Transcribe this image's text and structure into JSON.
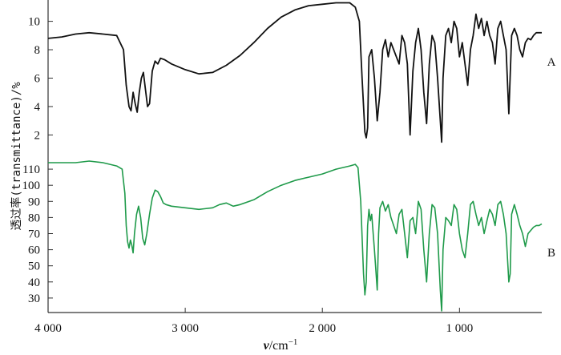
{
  "chart_data": {
    "type": "line",
    "title": "",
    "ylabel": "透过率(transmittance)/%",
    "xlabel": {
      "symbol": "ν",
      "unit": "/cm",
      "exponent": "−1"
    },
    "x_axis": {
      "range": [
        4000,
        400
      ],
      "reversed": true,
      "ticks": [
        4000,
        3000,
        2000,
        1000
      ],
      "tick_labels": [
        "4 000",
        "3 000",
        "2 000",
        "1 000"
      ]
    },
    "y_axis_A": {
      "range": [
        0.5,
        11.5
      ],
      "ticks": [
        2,
        4,
        6,
        8,
        10
      ],
      "tick_labels": [
        "2",
        "4",
        "6",
        "8",
        "10"
      ]
    },
    "y_axis_B": {
      "range": [
        21,
        118
      ],
      "ticks": [
        30,
        40,
        50,
        60,
        70,
        80,
        90,
        100,
        110
      ],
      "tick_labels": [
        "30",
        "40",
        "50",
        "60",
        "70",
        "80",
        "90",
        "100",
        "110"
      ]
    },
    "grid": false,
    "colors": {
      "A": "#111111",
      "B": "#1f9a4a",
      "axis": "#333333"
    },
    "series": [
      {
        "name": "A",
        "label": "A",
        "axis": "A",
        "color": "#111111",
        "points": [
          [
            4000,
            8.8
          ],
          [
            3900,
            8.9
          ],
          [
            3800,
            9.1
          ],
          [
            3700,
            9.2
          ],
          [
            3600,
            9.1
          ],
          [
            3500,
            9.0
          ],
          [
            3450,
            8.0
          ],
          [
            3430,
            5.5
          ],
          [
            3410,
            4.0
          ],
          [
            3395,
            3.7
          ],
          [
            3380,
            5.0
          ],
          [
            3365,
            4.2
          ],
          [
            3350,
            3.6
          ],
          [
            3335,
            5.0
          ],
          [
            3320,
            6.0
          ],
          [
            3305,
            6.4
          ],
          [
            3290,
            5.2
          ],
          [
            3275,
            4.0
          ],
          [
            3260,
            4.2
          ],
          [
            3240,
            6.5
          ],
          [
            3220,
            7.2
          ],
          [
            3200,
            7.0
          ],
          [
            3180,
            7.4
          ],
          [
            3150,
            7.3
          ],
          [
            3100,
            7.0
          ],
          [
            3000,
            6.6
          ],
          [
            2900,
            6.3
          ],
          [
            2800,
            6.4
          ],
          [
            2700,
            6.9
          ],
          [
            2600,
            7.6
          ],
          [
            2500,
            8.5
          ],
          [
            2400,
            9.5
          ],
          [
            2300,
            10.3
          ],
          [
            2200,
            10.8
          ],
          [
            2100,
            11.1
          ],
          [
            2000,
            11.2
          ],
          [
            1900,
            11.3
          ],
          [
            1800,
            11.3
          ],
          [
            1760,
            11.0
          ],
          [
            1730,
            10.0
          ],
          [
            1710,
            6.0
          ],
          [
            1690,
            2.2
          ],
          [
            1680,
            1.8
          ],
          [
            1670,
            2.5
          ],
          [
            1660,
            7.5
          ],
          [
            1640,
            8.0
          ],
          [
            1620,
            6.0
          ],
          [
            1600,
            3.0
          ],
          [
            1580,
            5.0
          ],
          [
            1560,
            8.0
          ],
          [
            1540,
            8.7
          ],
          [
            1520,
            7.5
          ],
          [
            1500,
            8.5
          ],
          [
            1480,
            8.0
          ],
          [
            1460,
            7.5
          ],
          [
            1440,
            7.0
          ],
          [
            1420,
            9.0
          ],
          [
            1400,
            8.5
          ],
          [
            1380,
            7.0
          ],
          [
            1360,
            2.0
          ],
          [
            1340,
            6.5
          ],
          [
            1320,
            8.5
          ],
          [
            1300,
            9.5
          ],
          [
            1280,
            8.0
          ],
          [
            1260,
            5.0
          ],
          [
            1240,
            2.8
          ],
          [
            1220,
            7.0
          ],
          [
            1200,
            9.0
          ],
          [
            1180,
            8.5
          ],
          [
            1160,
            6.0
          ],
          [
            1140,
            3.0
          ],
          [
            1130,
            1.5
          ],
          [
            1120,
            6.0
          ],
          [
            1100,
            9.0
          ],
          [
            1080,
            9.5
          ],
          [
            1060,
            8.5
          ],
          [
            1040,
            10.0
          ],
          [
            1020,
            9.5
          ],
          [
            1000,
            7.5
          ],
          [
            980,
            8.5
          ],
          [
            960,
            7.0
          ],
          [
            940,
            5.5
          ],
          [
            920,
            8.0
          ],
          [
            900,
            9.0
          ],
          [
            880,
            10.5
          ],
          [
            860,
            9.5
          ],
          [
            840,
            10.2
          ],
          [
            820,
            9.0
          ],
          [
            800,
            10.0
          ],
          [
            780,
            9.0
          ],
          [
            760,
            8.5
          ],
          [
            740,
            7.0
          ],
          [
            720,
            9.5
          ],
          [
            700,
            10.0
          ],
          [
            680,
            9.0
          ],
          [
            660,
            8.0
          ],
          [
            640,
            3.5
          ],
          [
            620,
            9.0
          ],
          [
            600,
            9.5
          ],
          [
            580,
            9.0
          ],
          [
            560,
            8.0
          ],
          [
            540,
            7.5
          ],
          [
            520,
            8.5
          ],
          [
            500,
            8.8
          ],
          [
            480,
            8.7
          ],
          [
            460,
            9.0
          ],
          [
            440,
            9.2
          ],
          [
            420,
            9.2
          ],
          [
            400,
            9.2
          ]
        ]
      },
      {
        "name": "B",
        "label": "B",
        "axis": "B",
        "color": "#1f9a4a",
        "points": [
          [
            4000,
            114
          ],
          [
            3900,
            114
          ],
          [
            3800,
            114
          ],
          [
            3700,
            115
          ],
          [
            3600,
            114
          ],
          [
            3500,
            112
          ],
          [
            3460,
            110
          ],
          [
            3440,
            95
          ],
          [
            3430,
            75
          ],
          [
            3420,
            65
          ],
          [
            3410,
            61
          ],
          [
            3400,
            66
          ],
          [
            3390,
            63
          ],
          [
            3380,
            58
          ],
          [
            3370,
            70
          ],
          [
            3355,
            82
          ],
          [
            3340,
            87
          ],
          [
            3325,
            80
          ],
          [
            3310,
            67
          ],
          [
            3295,
            63
          ],
          [
            3280,
            70
          ],
          [
            3260,
            82
          ],
          [
            3240,
            92
          ],
          [
            3220,
            97
          ],
          [
            3200,
            96
          ],
          [
            3180,
            93
          ],
          [
            3160,
            89
          ],
          [
            3140,
            88
          ],
          [
            3100,
            87
          ],
          [
            3000,
            86
          ],
          [
            2900,
            85
          ],
          [
            2800,
            86
          ],
          [
            2750,
            88
          ],
          [
            2700,
            89
          ],
          [
            2650,
            87
          ],
          [
            2600,
            88
          ],
          [
            2500,
            91
          ],
          [
            2400,
            96
          ],
          [
            2300,
            100
          ],
          [
            2200,
            103
          ],
          [
            2100,
            105
          ],
          [
            2000,
            107
          ],
          [
            1900,
            110
          ],
          [
            1800,
            112
          ],
          [
            1760,
            113
          ],
          [
            1740,
            111
          ],
          [
            1720,
            90
          ],
          [
            1700,
            45
          ],
          [
            1690,
            32
          ],
          [
            1680,
            40
          ],
          [
            1670,
            75
          ],
          [
            1660,
            85
          ],
          [
            1650,
            78
          ],
          [
            1640,
            82
          ],
          [
            1620,
            60
          ],
          [
            1600,
            35
          ],
          [
            1590,
            70
          ],
          [
            1580,
            86
          ],
          [
            1560,
            90
          ],
          [
            1540,
            84
          ],
          [
            1520,
            88
          ],
          [
            1500,
            80
          ],
          [
            1480,
            75
          ],
          [
            1460,
            70
          ],
          [
            1440,
            82
          ],
          [
            1420,
            85
          ],
          [
            1400,
            70
          ],
          [
            1380,
            55
          ],
          [
            1360,
            78
          ],
          [
            1340,
            80
          ],
          [
            1320,
            70
          ],
          [
            1300,
            90
          ],
          [
            1280,
            85
          ],
          [
            1260,
            60
          ],
          [
            1240,
            40
          ],
          [
            1220,
            70
          ],
          [
            1200,
            88
          ],
          [
            1180,
            86
          ],
          [
            1160,
            70
          ],
          [
            1140,
            35
          ],
          [
            1130,
            22
          ],
          [
            1120,
            60
          ],
          [
            1100,
            80
          ],
          [
            1080,
            78
          ],
          [
            1060,
            75
          ],
          [
            1040,
            88
          ],
          [
            1020,
            85
          ],
          [
            1000,
            70
          ],
          [
            980,
            60
          ],
          [
            960,
            55
          ],
          [
            940,
            70
          ],
          [
            920,
            88
          ],
          [
            900,
            90
          ],
          [
            880,
            82
          ],
          [
            860,
            75
          ],
          [
            840,
            80
          ],
          [
            820,
            70
          ],
          [
            800,
            78
          ],
          [
            780,
            85
          ],
          [
            760,
            82
          ],
          [
            740,
            75
          ],
          [
            720,
            88
          ],
          [
            700,
            90
          ],
          [
            680,
            82
          ],
          [
            660,
            70
          ],
          [
            640,
            40
          ],
          [
            630,
            45
          ],
          [
            620,
            82
          ],
          [
            600,
            88
          ],
          [
            580,
            82
          ],
          [
            560,
            75
          ],
          [
            540,
            70
          ],
          [
            520,
            62
          ],
          [
            500,
            70
          ],
          [
            480,
            72
          ],
          [
            460,
            74
          ],
          [
            440,
            75
          ],
          [
            420,
            75
          ],
          [
            400,
            76
          ]
        ]
      }
    ]
  }
}
